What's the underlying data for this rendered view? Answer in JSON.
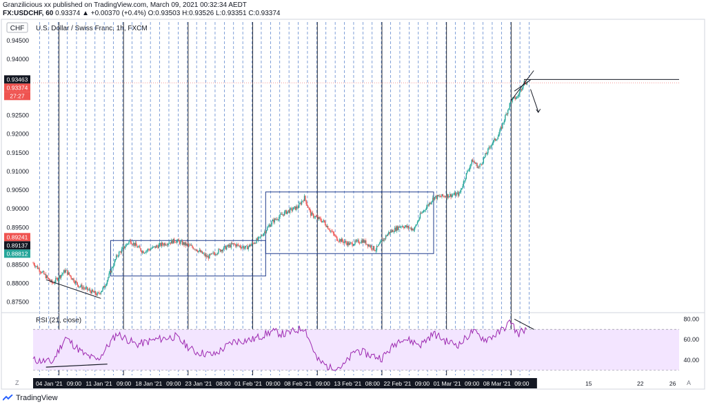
{
  "header": {
    "publisher_line": "Granzilicious xx published on TradingView.com, March 09, 2021 00:32:34 AEDT",
    "symbol": "FX:USDCHF, 60",
    "change": "0.93374 ▲ +0.00370 (+0.4%)",
    "o_label": "O:",
    "o_value": "0.93503",
    "h_label": "H:",
    "h_value": "0.93526",
    "l_label": "L:",
    "l_value": "0.93351",
    "c_label": "C:",
    "c_value": "0.93374"
  },
  "chart_title": "U.S. Dollar / Swiss Franc, 1h, FXCM",
  "currency_button": "CHF",
  "rsi_label": "RSI (21, close)",
  "footer": {
    "brand": "TradingView"
  },
  "corner_labels": {
    "z": "Z",
    "a": "A"
  },
  "colors": {
    "up": "#26a69a",
    "down": "#ef5350",
    "rsi": "#9c27b0",
    "rsi_band": "#f3e5ff",
    "price_badge": "#ef5350",
    "level_badge_dark": "#131722",
    "level_badge_green": "#26a69a"
  },
  "price_badges": [
    {
      "label": "0.93463",
      "price": 0.93463,
      "style": "dark"
    },
    {
      "label": "0.93374",
      "price": 0.93374,
      "style": "red"
    },
    {
      "label": "27:27",
      "price": 0.93374,
      "style": "red-sub"
    },
    {
      "label": "0.89241",
      "price": 0.89241,
      "style": "red"
    },
    {
      "label": "0.89137",
      "price": 0.89137,
      "style": "dark"
    },
    {
      "label": "0.88812",
      "price": 0.88812,
      "style": "green"
    }
  ],
  "rsi_ticks": [
    "80.00",
    "60.00",
    "40.00"
  ],
  "x_ticks": [
    "04 Jan '21",
    "09:00",
    "11 Jan '21",
    "09:00",
    "18 Jan '21",
    "09:00",
    "23 Jan '21",
    "08:00",
    "01 Feb '21",
    "09:00",
    "08 Feb '21",
    "09:00",
    "13 Feb '21",
    "08:00",
    "22 Feb '21",
    "09:00",
    "01 Mar '21",
    "09:00",
    "08 Mar '21",
    "09:00",
    "15",
    "22",
    "26"
  ],
  "chart_data": {
    "type": "line",
    "title": "U.S. Dollar / Swiss Franc, 1h, FXCM",
    "ylabel": "",
    "ylim": [
      0.872,
      0.95
    ],
    "y_ticks": [
      0.945,
      0.94,
      0.935,
      0.93,
      0.925,
      0.92,
      0.915,
      0.91,
      0.905,
      0.9,
      0.895,
      0.89,
      0.885,
      0.88,
      0.875
    ],
    "y_tick_labels": [
      "0.94500",
      "0.94000",
      "0.93500",
      "0.93000",
      "0.92500",
      "0.92000",
      "0.91500",
      "0.91000",
      "0.90500",
      "0.90000",
      "0.89500",
      "0.89000",
      "0.88500",
      "0.88000",
      "0.87500"
    ],
    "x_range_days": [
      0,
      77
    ],
    "x_start": "2021-01-01",
    "price_path": [
      {
        "day": 0,
        "price": 0.8855
      },
      {
        "day": 3,
        "price": 0.88
      },
      {
        "day": 5,
        "price": 0.8835
      },
      {
        "day": 7,
        "price": 0.8795
      },
      {
        "day": 10,
        "price": 0.877
      },
      {
        "day": 11,
        "price": 0.879
      },
      {
        "day": 13,
        "price": 0.8875
      },
      {
        "day": 15,
        "price": 0.8915
      },
      {
        "day": 17,
        "price": 0.8885
      },
      {
        "day": 20,
        "price": 0.8905
      },
      {
        "day": 22,
        "price": 0.8915
      },
      {
        "day": 25,
        "price": 0.8895
      },
      {
        "day": 27,
        "price": 0.887
      },
      {
        "day": 29,
        "price": 0.889
      },
      {
        "day": 31,
        "price": 0.8905
      },
      {
        "day": 33,
        "price": 0.8895
      },
      {
        "day": 35,
        "price": 0.892
      },
      {
        "day": 37,
        "price": 0.8965
      },
      {
        "day": 39,
        "price": 0.899
      },
      {
        "day": 41,
        "price": 0.9005
      },
      {
        "day": 42,
        "price": 0.903
      },
      {
        "day": 43,
        "price": 0.8985
      },
      {
        "day": 45,
        "price": 0.8965
      },
      {
        "day": 47,
        "price": 0.892
      },
      {
        "day": 49,
        "price": 0.8905
      },
      {
        "day": 51,
        "price": 0.8915
      },
      {
        "day": 53,
        "price": 0.889
      },
      {
        "day": 55,
        "price": 0.8935
      },
      {
        "day": 57,
        "price": 0.8955
      },
      {
        "day": 59,
        "price": 0.8945
      },
      {
        "day": 60,
        "price": 0.8985
      },
      {
        "day": 62,
        "price": 0.903
      },
      {
        "day": 64,
        "price": 0.9035
      },
      {
        "day": 66,
        "price": 0.904
      },
      {
        "day": 67,
        "price": 0.909
      },
      {
        "day": 68,
        "price": 0.913
      },
      {
        "day": 69,
        "price": 0.911
      },
      {
        "day": 71,
        "price": 0.9175
      },
      {
        "day": 72,
        "price": 0.9195
      },
      {
        "day": 74,
        "price": 0.929
      },
      {
        "day": 75,
        "price": 0.93
      },
      {
        "day": 76,
        "price": 0.934
      },
      {
        "day": 76.5,
        "price": 0.9337
      }
    ],
    "rsi": {
      "ylim": [
        25,
        85
      ],
      "overbought": 70,
      "oversold": 30,
      "path": [
        {
          "day": 0,
          "value": 40
        },
        {
          "day": 3,
          "value": 38
        },
        {
          "day": 5,
          "value": 62
        },
        {
          "day": 8,
          "value": 45
        },
        {
          "day": 10,
          "value": 40
        },
        {
          "day": 13,
          "value": 66
        },
        {
          "day": 16,
          "value": 55
        },
        {
          "day": 19,
          "value": 60
        },
        {
          "day": 22,
          "value": 63
        },
        {
          "day": 25,
          "value": 48
        },
        {
          "day": 28,
          "value": 45
        },
        {
          "day": 31,
          "value": 58
        },
        {
          "day": 34,
          "value": 60
        },
        {
          "day": 37,
          "value": 68
        },
        {
          "day": 39,
          "value": 65
        },
        {
          "day": 42,
          "value": 72
        },
        {
          "day": 44,
          "value": 40
        },
        {
          "day": 46,
          "value": 32
        },
        {
          "day": 48,
          "value": 34
        },
        {
          "day": 50,
          "value": 50
        },
        {
          "day": 52,
          "value": 45
        },
        {
          "day": 54,
          "value": 42
        },
        {
          "day": 57,
          "value": 62
        },
        {
          "day": 60,
          "value": 55
        },
        {
          "day": 62,
          "value": 66
        },
        {
          "day": 64,
          "value": 58
        },
        {
          "day": 66,
          "value": 55
        },
        {
          "day": 68,
          "value": 68
        },
        {
          "day": 70,
          "value": 60
        },
        {
          "day": 72,
          "value": 66
        },
        {
          "day": 74,
          "value": 78
        },
        {
          "day": 75,
          "value": 65
        },
        {
          "day": 76,
          "value": 70
        },
        {
          "day": 76.5,
          "value": 68
        }
      ]
    },
    "boxes": [
      {
        "day_from": 12,
        "day_to": 36,
        "price_top": 0.8915,
        "price_bottom": 0.882
      },
      {
        "day_from": 36,
        "day_to": 62,
        "price_top": 0.9045,
        "price_bottom": 0.888
      }
    ],
    "horizontal_levels": [
      0.93463
    ]
  }
}
